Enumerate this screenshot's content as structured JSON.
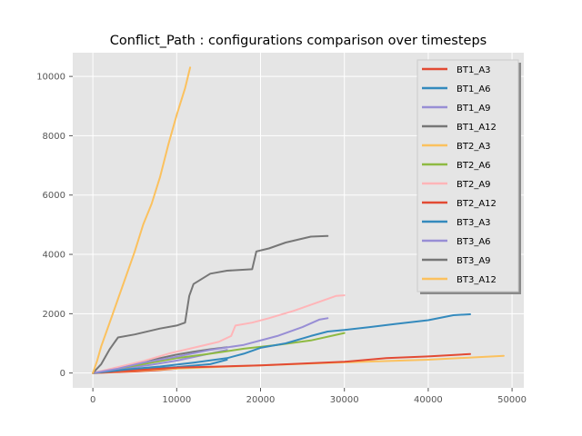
{
  "chart_data": {
    "type": "line",
    "title": "Conflict_Path : configurations comparison over timesteps",
    "xlabel": "",
    "ylabel": "",
    "xlim": [
      -2400,
      51400
    ],
    "ylim": [
      -500,
      10800
    ],
    "xticks": [
      0,
      10000,
      20000,
      30000,
      40000,
      50000
    ],
    "xtick_labels": [
      "0",
      "10000",
      "20000",
      "30000",
      "40000",
      "50000"
    ],
    "yticks": [
      0,
      2000,
      4000,
      6000,
      8000,
      10000
    ],
    "ytick_labels": [
      "0",
      "2000",
      "4000",
      "6000",
      "8000",
      "10000"
    ],
    "grid": true,
    "legend_position": "top-right",
    "series": [
      {
        "name": "BT1_A3",
        "color": "#E24A33",
        "points": [
          [
            0,
            0
          ],
          [
            2000,
            20
          ],
          [
            5000,
            50
          ],
          [
            8000,
            100
          ],
          [
            10000,
            150
          ]
        ]
      },
      {
        "name": "BT1_A6",
        "color": "#348ABD",
        "points": [
          [
            0,
            0
          ],
          [
            2000,
            50
          ],
          [
            5000,
            120
          ],
          [
            10000,
            200
          ],
          [
            14000,
            300
          ],
          [
            16000,
            450
          ]
        ]
      },
      {
        "name": "BT1_A9",
        "color": "#988ED5",
        "points": [
          [
            0,
            0
          ],
          [
            2000,
            80
          ],
          [
            4000,
            160
          ],
          [
            7000,
            280
          ],
          [
            10000,
            420
          ],
          [
            13000,
            600
          ],
          [
            16000,
            780
          ]
        ]
      },
      {
        "name": "BT1_A12",
        "color": "#777777",
        "points": [
          [
            0,
            0
          ],
          [
            2000,
            120
          ],
          [
            4000,
            220
          ],
          [
            6000,
            350
          ],
          [
            8000,
            500
          ],
          [
            10000,
            620
          ],
          [
            12000,
            720
          ],
          [
            14000,
            800
          ],
          [
            16000,
            870
          ]
        ]
      },
      {
        "name": "BT2_A3",
        "color": "#FBC15E",
        "points": [
          [
            0,
            0
          ],
          [
            5000,
            80
          ],
          [
            10000,
            150
          ],
          [
            20000,
            260
          ],
          [
            30000,
            360
          ],
          [
            40000,
            450
          ],
          [
            49000,
            580
          ]
        ]
      },
      {
        "name": "BT2_A6",
        "color": "#8EBA42",
        "points": [
          [
            0,
            0
          ],
          [
            3000,
            150
          ],
          [
            6000,
            300
          ],
          [
            10000,
            500
          ],
          [
            14000,
            650
          ],
          [
            18000,
            820
          ],
          [
            22000,
            950
          ],
          [
            26000,
            1100
          ],
          [
            30000,
            1350
          ]
        ]
      },
      {
        "name": "BT2_A9",
        "color": "#FFB5B8",
        "points": [
          [
            0,
            0
          ],
          [
            3000,
            200
          ],
          [
            6000,
            400
          ],
          [
            9000,
            650
          ],
          [
            12000,
            850
          ],
          [
            15000,
            1050
          ],
          [
            16500,
            1250
          ],
          [
            17000,
            1600
          ],
          [
            19000,
            1700
          ],
          [
            21000,
            1850
          ],
          [
            24000,
            2100
          ],
          [
            27000,
            2400
          ],
          [
            29000,
            2600
          ],
          [
            30000,
            2620
          ]
        ]
      },
      {
        "name": "BT2_A12",
        "color": "#E24A33",
        "points": [
          [
            0,
            0
          ],
          [
            10000,
            180
          ],
          [
            20000,
            260
          ],
          [
            30000,
            380
          ],
          [
            35000,
            500
          ],
          [
            40000,
            560
          ],
          [
            45000,
            640
          ]
        ]
      },
      {
        "name": "BT3_A3",
        "color": "#348ABD",
        "points": [
          [
            0,
            0
          ],
          [
            4000,
            120
          ],
          [
            8000,
            220
          ],
          [
            12000,
            350
          ],
          [
            16000,
            500
          ],
          [
            18000,
            650
          ],
          [
            20000,
            850
          ],
          [
            23000,
            1000
          ],
          [
            26000,
            1250
          ],
          [
            28000,
            1400
          ],
          [
            30000,
            1450
          ],
          [
            33000,
            1550
          ],
          [
            36000,
            1650
          ],
          [
            40000,
            1780
          ],
          [
            43000,
            1950
          ],
          [
            45000,
            1980
          ]
        ]
      },
      {
        "name": "BT3_A6",
        "color": "#988ED5",
        "points": [
          [
            0,
            0
          ],
          [
            3000,
            150
          ],
          [
            6000,
            350
          ],
          [
            10000,
            550
          ],
          [
            14000,
            780
          ],
          [
            18000,
            950
          ],
          [
            22000,
            1250
          ],
          [
            25000,
            1550
          ],
          [
            27000,
            1800
          ],
          [
            28000,
            1850
          ]
        ]
      },
      {
        "name": "BT3_A9",
        "color": "#777777",
        "points": [
          [
            0,
            0
          ],
          [
            1000,
            300
          ],
          [
            2000,
            800
          ],
          [
            3000,
            1200
          ],
          [
            5000,
            1300
          ],
          [
            8000,
            1500
          ],
          [
            10000,
            1600
          ],
          [
            11000,
            1700
          ],
          [
            11500,
            2600
          ],
          [
            12000,
            3000
          ],
          [
            14000,
            3350
          ],
          [
            16000,
            3450
          ],
          [
            19000,
            3500
          ],
          [
            19500,
            4100
          ],
          [
            21000,
            4200
          ],
          [
            23000,
            4400
          ],
          [
            26000,
            4600
          ],
          [
            28000,
            4620
          ]
        ]
      },
      {
        "name": "BT3_A12",
        "color": "#FBC15E",
        "points": [
          [
            0,
            0
          ],
          [
            500,
            400
          ],
          [
            1000,
            900
          ],
          [
            2000,
            1700
          ],
          [
            3000,
            2500
          ],
          [
            4000,
            3300
          ],
          [
            5000,
            4100
          ],
          [
            6000,
            5000
          ],
          [
            7000,
            5700
          ],
          [
            8000,
            6600
          ],
          [
            9000,
            7700
          ],
          [
            10000,
            8700
          ],
          [
            11000,
            9600
          ],
          [
            11600,
            10300
          ]
        ]
      }
    ]
  }
}
